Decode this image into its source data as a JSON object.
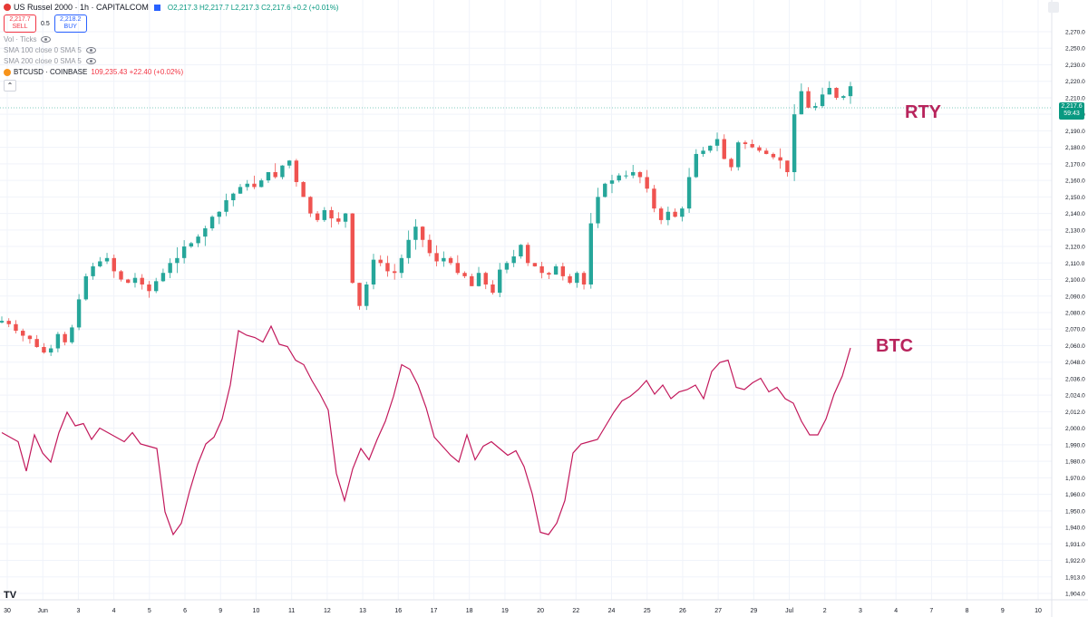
{
  "header": {
    "title": "US Russel 2000 · 1h · CAPITALCOM",
    "ohlc": "O2,217.3 H2,217.7 L2,217.3 C2,217.6 +0.2 (+0.01%)",
    "sell_price": "2,217.7",
    "sell_label": "SELL",
    "spread": "0.5",
    "buy_price": "2,218.2",
    "buy_label": "BUY"
  },
  "indicators": [
    {
      "label": "Vol · Ticks"
    },
    {
      "label": "SMA 100 close 0 SMA 5"
    },
    {
      "label": "SMA 200 close 0 SMA 5"
    }
  ],
  "compare": {
    "label": "BTCUSD · COINBASE",
    "value": "109,235.43 +22.40 (+0.02%)"
  },
  "collapse_icon": "chevron-up",
  "logo_text": "TV",
  "price_tag": {
    "price": "2,217.6",
    "countdown": "59:43"
  },
  "annotations": {
    "rty": "RTY",
    "btc": "BTC"
  },
  "colors": {
    "up": "#26a69a",
    "down": "#ef5350",
    "btc_line": "#c2185b",
    "annotation": "#b8245c",
    "price_tag": "#089981",
    "grid": "#f0f3fa"
  },
  "chart_data": {
    "type": "candlestick+line",
    "yaxis_ticks": [
      "2,270.0",
      "2,250.0",
      "2,230.0",
      "2,220.0",
      "2,210.0",
      "2,200.0",
      "2,190.0",
      "2,180.0",
      "2,170.0",
      "2,160.0",
      "2,150.0",
      "2,140.0",
      "2,130.0",
      "2,120.0",
      "2,110.0",
      "2,100.0",
      "2,090.0",
      "2,080.0",
      "2,070.0",
      "2,060.0",
      "2,048.0",
      "2,036.0",
      "2,024.0",
      "2,012.0",
      "2,000.0",
      "1,990.0",
      "1,980.0",
      "1,970.0",
      "1,960.0",
      "1,950.0",
      "1,940.0",
      "1,931.0",
      "1,922.0",
      "1,913.0",
      "1,904.0"
    ],
    "xaxis_ticks": [
      "30",
      "Jun",
      "3",
      "4",
      "5",
      "6",
      "9",
      "10",
      "11",
      "12",
      "13",
      "16",
      "17",
      "18",
      "19",
      "20",
      "22",
      "24",
      "25",
      "26",
      "27",
      "29",
      "Jul",
      "2",
      "3",
      "4",
      "7",
      "8",
      "9",
      "10"
    ],
    "rty_series": [
      2075,
      2073,
      2069,
      2066,
      2064,
      2059,
      2055,
      2058,
      2067,
      2062,
      2071,
      2088,
      2102,
      2108,
      2111,
      2113,
      2105,
      2100,
      2098,
      2101,
      2097,
      2093,
      2099,
      2104,
      2110,
      2113,
      2120,
      2122,
      2126,
      2131,
      2138,
      2141,
      2148,
      2152,
      2156,
      2158,
      2156,
      2160,
      2165,
      2162,
      2169,
      2172,
      2159,
      2150,
      2140,
      2136,
      2142,
      2137,
      2135,
      2140,
      2098,
      2084,
      2097,
      2112,
      2110,
      2105,
      2104,
      2113,
      2124,
      2132,
      2124,
      2116,
      2111,
      2113,
      2110,
      2104,
      2102,
      2096,
      2104,
      2097,
      2092,
      2106,
      2110,
      2114,
      2121,
      2110,
      2108,
      2104,
      2103,
      2108,
      2102,
      2098,
      2104,
      2097,
      2134,
      2150,
      2158,
      2160,
      2163,
      2163,
      2165,
      2162,
      2155,
      2143,
      2136,
      2141,
      2138,
      2143,
      2162,
      2176,
      2178,
      2181,
      2185,
      2173,
      2168,
      2183,
      2182,
      2180,
      2178,
      2176,
      2174,
      2172,
      2165,
      2200,
      2214,
      2204,
      2205,
      2212,
      2216,
      2210,
      2211,
      2217
    ],
    "btc_series": [
      105500,
      105300,
      105100,
      103800,
      105400,
      104600,
      104200,
      105500,
      106400,
      105800,
      105900,
      105200,
      105700,
      105500,
      105300,
      105100,
      105500,
      105000,
      104900,
      104800,
      102000,
      101000,
      101500,
      102900,
      104100,
      105000,
      105300,
      106100,
      107600,
      110000,
      109800,
      109700,
      109500,
      110200,
      109400,
      109300,
      108700,
      108500,
      107800,
      107200,
      106500,
      103700,
      102500,
      103900,
      104800,
      104300,
      105200,
      106000,
      107100,
      108500,
      108300,
      107600,
      106600,
      105300,
      104900,
      104500,
      104200,
      105400,
      104300,
      104900,
      105100,
      104800,
      104500,
      104700,
      104000,
      102800,
      101100,
      101000,
      101500,
      102500,
      104600,
      105000,
      105100,
      105200,
      105800,
      106400,
      106900,
      107100,
      107400,
      107800,
      107200,
      107600,
      107000,
      107300,
      107400,
      107600,
      107000,
      108200,
      108600,
      108700,
      107500,
      107400,
      107700,
      107900,
      107300,
      107500,
      107000,
      106800,
      106000,
      105400,
      105400,
      106100,
      107200,
      108000,
      109235
    ]
  }
}
